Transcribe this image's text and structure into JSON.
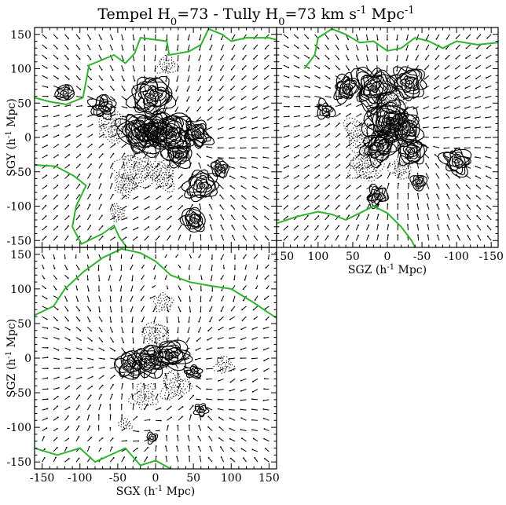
{
  "figure": {
    "title": {
      "prefix": "Tempel H",
      "sub1": "0",
      "mid": "=73 - Tully H",
      "sub2": "0",
      "mid2": "=73 km s",
      "sup1": "-1",
      "mid3": " Mpc",
      "sup2": "-1"
    }
  },
  "colors": {
    "frame": "#000000",
    "zero_contour": "#2db52d",
    "positive_contour": "#000000",
    "negative_contour": "#000000",
    "arrows": "#000000"
  },
  "chart_data": [
    {
      "id": "sgx-sgy",
      "type": "contour",
      "overlay": "velocity-field arrows",
      "xlabel": "",
      "ylabel": {
        "text": "SGY (h",
        "sup": "-1",
        "tail": " Mpc)"
      },
      "xlim": [
        -160,
        160
      ],
      "ylim": [
        -160,
        160
      ],
      "x_ticks": [],
      "y_ticks": [
        150,
        100,
        50,
        0,
        -50,
        -100,
        -150
      ],
      "blobs": [
        {
          "x": -5,
          "y": 60,
          "sign": 1,
          "n": 12
        },
        {
          "x": -20,
          "y": 5,
          "sign": 1,
          "n": 14
        },
        {
          "x": 20,
          "y": 5,
          "sign": 1,
          "n": 14
        },
        {
          "x": 0,
          "y": 12,
          "sign": 1,
          "n": 10
        },
        {
          "x": 55,
          "y": 5,
          "sign": 1,
          "n": 9
        },
        {
          "x": 30,
          "y": -25,
          "sign": 1,
          "n": 8
        },
        {
          "x": 60,
          "y": -70,
          "sign": 1,
          "n": 9
        },
        {
          "x": 50,
          "y": -120,
          "sign": 1,
          "n": 8
        },
        {
          "x": -70,
          "y": 45,
          "sign": 1,
          "n": 7
        },
        {
          "x": -120,
          "y": 65,
          "sign": 1,
          "n": 5
        },
        {
          "x": 85,
          "y": -45,
          "sign": 1,
          "n": 6
        },
        {
          "x": -25,
          "y": -45,
          "sign": -1,
          "n": 8
        },
        {
          "x": 10,
          "y": -55,
          "sign": -1,
          "n": 7
        },
        {
          "x": -55,
          "y": 15,
          "sign": -1,
          "n": 7
        },
        {
          "x": 15,
          "y": 105,
          "sign": -1,
          "n": 4
        },
        {
          "x": -50,
          "y": -110,
          "sign": -1,
          "n": 4
        },
        {
          "x": -40,
          "y": -70,
          "sign": -1,
          "n": 5
        }
      ],
      "zero_contour": [
        [
          -160,
          58
        ],
        [
          -140,
          52
        ],
        [
          -118,
          48
        ],
        [
          -96,
          58
        ],
        [
          -88,
          105
        ],
        [
          -55,
          120
        ],
        [
          -40,
          108
        ],
        [
          -28,
          122
        ],
        [
          -20,
          145
        ],
        [
          15,
          140
        ],
        [
          18,
          120
        ],
        [
          44,
          125
        ],
        [
          60,
          135
        ],
        [
          70,
          158
        ],
        [
          88,
          150
        ],
        [
          100,
          140
        ],
        [
          120,
          145
        ],
        [
          150,
          145
        ],
        [
          160,
          142
        ]
      ],
      "zero_contour_2": [
        [
          -160,
          -40
        ],
        [
          -132,
          -42
        ],
        [
          -108,
          -56
        ],
        [
          -92,
          -70
        ],
        [
          -105,
          -100
        ],
        [
          -110,
          -130
        ],
        [
          -98,
          -155
        ],
        [
          -70,
          -140
        ],
        [
          -55,
          -128
        ],
        [
          -48,
          -145
        ],
        [
          -38,
          -160
        ]
      ]
    },
    {
      "id": "sgz-sgy",
      "type": "contour",
      "overlay": "velocity-field arrows",
      "xlabel": {
        "text": "SGZ (h",
        "sup": "-1",
        "tail": " Mpc)"
      },
      "ylabel": "",
      "xlim": [
        160,
        -160
      ],
      "ylim": [
        -160,
        160
      ],
      "x_ticks": [
        150,
        100,
        50,
        0,
        -50,
        -100,
        -150
      ],
      "y_ticks": [],
      "blobs": [
        {
          "x": 20,
          "y": 72,
          "sign": 1,
          "n": 13
        },
        {
          "x": -30,
          "y": 80,
          "sign": 1,
          "n": 10
        },
        {
          "x": 60,
          "y": 72,
          "sign": 1,
          "n": 9
        },
        {
          "x": 0,
          "y": 25,
          "sign": 1,
          "n": 14
        },
        {
          "x": -25,
          "y": 15,
          "sign": 1,
          "n": 10
        },
        {
          "x": 10,
          "y": -10,
          "sign": 1,
          "n": 12
        },
        {
          "x": -35,
          "y": -20,
          "sign": 1,
          "n": 9
        },
        {
          "x": -100,
          "y": -35,
          "sign": 1,
          "n": 8
        },
        {
          "x": 15,
          "y": -85,
          "sign": 1,
          "n": 7
        },
        {
          "x": -45,
          "y": -65,
          "sign": 1,
          "n": 5
        },
        {
          "x": 90,
          "y": 40,
          "sign": 1,
          "n": 5
        },
        {
          "x": 30,
          "y": -40,
          "sign": -1,
          "n": 8
        },
        {
          "x": 40,
          "y": 5,
          "sign": -1,
          "n": 7
        },
        {
          "x": -10,
          "y": 55,
          "sign": -1,
          "n": 6
        },
        {
          "x": -20,
          "y": -45,
          "sign": -1,
          "n": 5
        }
      ],
      "zero_contour": [
        [
          120,
          100
        ],
        [
          105,
          120
        ],
        [
          100,
          145
        ],
        [
          80,
          158
        ],
        [
          60,
          150
        ],
        [
          40,
          138
        ],
        [
          20,
          140
        ],
        [
          0,
          126
        ],
        [
          -20,
          130
        ],
        [
          -40,
          145
        ],
        [
          -60,
          140
        ],
        [
          -80,
          130
        ],
        [
          -100,
          140
        ],
        [
          -130,
          135
        ],
        [
          -160,
          138
        ]
      ],
      "zero_contour_2": [
        [
          160,
          -125
        ],
        [
          130,
          -115
        ],
        [
          100,
          -108
        ],
        [
          80,
          -112
        ],
        [
          60,
          -120
        ],
        [
          40,
          -110
        ],
        [
          20,
          -100
        ],
        [
          0,
          -110
        ],
        [
          -20,
          -130
        ],
        [
          -35,
          -150
        ],
        [
          -40,
          -160
        ]
      ]
    },
    {
      "id": "sgx-sgz",
      "type": "contour",
      "overlay": "velocity-field arrows",
      "xlabel": {
        "text": "SGX (h",
        "sup": "-1",
        "tail": " Mpc)"
      },
      "ylabel": {
        "text": "SGZ (h",
        "sup": "-1",
        "tail": " Mpc)"
      },
      "xlim": [
        -160,
        160
      ],
      "ylim": [
        -160,
        160
      ],
      "x_ticks": [
        -150,
        -100,
        -50,
        0,
        50,
        100,
        150
      ],
      "y_ticks": [
        150,
        100,
        50,
        0,
        -50,
        -100,
        -150
      ],
      "blobs": [
        {
          "x": 20,
          "y": 5,
          "sign": 1,
          "n": 11
        },
        {
          "x": -10,
          "y": -5,
          "sign": 1,
          "n": 10
        },
        {
          "x": -35,
          "y": -10,
          "sign": 1,
          "n": 8
        },
        {
          "x": 50,
          "y": -20,
          "sign": 1,
          "n": 5
        },
        {
          "x": 60,
          "y": -75,
          "sign": 1,
          "n": 4
        },
        {
          "x": -5,
          "y": -115,
          "sign": 1,
          "n": 3
        },
        {
          "x": 0,
          "y": 35,
          "sign": -1,
          "n": 6
        },
        {
          "x": 25,
          "y": -40,
          "sign": -1,
          "n": 6
        },
        {
          "x": -15,
          "y": -55,
          "sign": -1,
          "n": 5
        },
        {
          "x": 90,
          "y": -10,
          "sign": -1,
          "n": 4
        },
        {
          "x": 10,
          "y": 80,
          "sign": -1,
          "n": 4
        },
        {
          "x": -40,
          "y": -95,
          "sign": -1,
          "n": 3
        }
      ],
      "zero_contour": [
        [
          -160,
          62
        ],
        [
          -135,
          75
        ],
        [
          -120,
          100
        ],
        [
          -95,
          125
        ],
        [
          -70,
          145
        ],
        [
          -45,
          158
        ],
        [
          -20,
          152
        ],
        [
          0,
          140
        ],
        [
          20,
          120
        ],
        [
          45,
          110
        ],
        [
          70,
          105
        ],
        [
          100,
          100
        ],
        [
          130,
          80
        ],
        [
          150,
          65
        ],
        [
          160,
          58
        ]
      ],
      "zero_contour_2": [
        [
          -160,
          -130
        ],
        [
          -130,
          -140
        ],
        [
          -100,
          -130
        ],
        [
          -80,
          -150
        ],
        [
          -60,
          -140
        ],
        [
          -40,
          -130
        ],
        [
          -20,
          -155
        ],
        [
          0,
          -148
        ],
        [
          20,
          -160
        ]
      ]
    }
  ]
}
